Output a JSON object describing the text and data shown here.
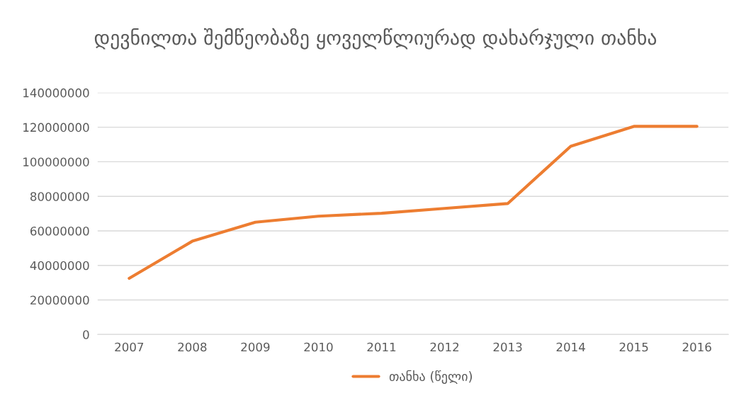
{
  "chart_data": {
    "type": "line",
    "title": "დევნილთა შემწეობაზე ყოველწლიურად დახარჯული თანხა",
    "categories": [
      "2007",
      "2008",
      "2009",
      "2010",
      "2011",
      "2012",
      "2013",
      "2014",
      "2015",
      "2016"
    ],
    "series": [
      {
        "name": "თანხა (წელი)",
        "color": "#ed7d31",
        "values": [
          32500000,
          54000000,
          65000000,
          68500000,
          70200000,
          73000000,
          75800000,
          109000000,
          120500000,
          120500000
        ]
      }
    ],
    "ylim": [
      0,
      140000000
    ],
    "yticks": [
      0,
      20000000,
      40000000,
      60000000,
      80000000,
      100000000,
      120000000,
      140000000
    ],
    "grid": "y",
    "legend": "bottom",
    "marker": "none",
    "line_style": "solid"
  }
}
